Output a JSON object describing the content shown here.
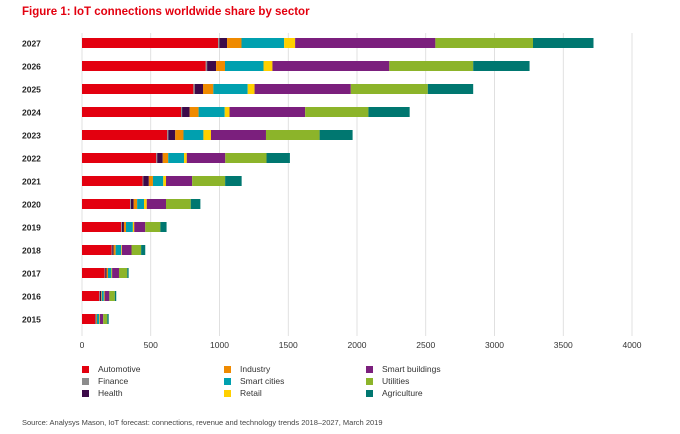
{
  "chart_data": {
    "type": "bar",
    "orientation": "horizontal",
    "stacked": true,
    "title": "Figure 1: IoT connections worldwide share by sector",
    "categories": [
      "2027",
      "2026",
      "2025",
      "2024",
      "2023",
      "2022",
      "2021",
      "2020",
      "2019",
      "2018",
      "2017",
      "2016",
      "2015"
    ],
    "xlim": [
      0,
      4000
    ],
    "xticks": [
      0,
      500,
      1000,
      1500,
      2000,
      2500,
      3000,
      3500,
      4000
    ],
    "grid": true,
    "legend_position": "bottom",
    "series": [
      {
        "name": "Automotive",
        "color": "#e3000f",
        "values": [
          990,
          900,
          810,
          720,
          620,
          540,
          440,
          350,
          285,
          215,
          165,
          125,
          95
        ]
      },
      {
        "name": "Finance",
        "color": "#8c8c8c",
        "values": [
          10,
          10,
          10,
          8,
          8,
          7,
          6,
          6,
          5,
          5,
          4,
          4,
          4
        ]
      },
      {
        "name": "Health",
        "color": "#3c0a49",
        "values": [
          55,
          65,
          60,
          55,
          50,
          40,
          40,
          20,
          15,
          10,
          10,
          10,
          5
        ]
      },
      {
        "name": "Industry",
        "color": "#ef8a00",
        "values": [
          105,
          65,
          75,
          65,
          60,
          40,
          30,
          25,
          15,
          15,
          10,
          5,
          5
        ]
      },
      {
        "name": "Smart cities",
        "color": "#00a0af",
        "values": [
          310,
          280,
          250,
          190,
          145,
          115,
          75,
          50,
          50,
          40,
          25,
          15,
          15
        ]
      },
      {
        "name": "Retail",
        "color": "#ffd000",
        "values": [
          80,
          65,
          50,
          35,
          55,
          20,
          20,
          20,
          10,
          5,
          5,
          5,
          5
        ]
      },
      {
        "name": "Smart buildings",
        "color": "#7b1f7d",
        "values": [
          1020,
          850,
          700,
          550,
          400,
          280,
          190,
          140,
          80,
          70,
          50,
          35,
          25
        ]
      },
      {
        "name": "Utilities",
        "color": "#8cb42a",
        "values": [
          710,
          610,
          560,
          460,
          390,
          300,
          240,
          180,
          110,
          70,
          60,
          40,
          30
        ]
      },
      {
        "name": "Agriculture",
        "color": "#007770",
        "values": [
          440,
          410,
          330,
          300,
          240,
          170,
          120,
          70,
          45,
          30,
          10,
          10,
          10
        ]
      }
    ],
    "source": "Source: Analysys Mason, IoT forecast: connections, revenue and technology trends 2018–2027, March 2019"
  }
}
